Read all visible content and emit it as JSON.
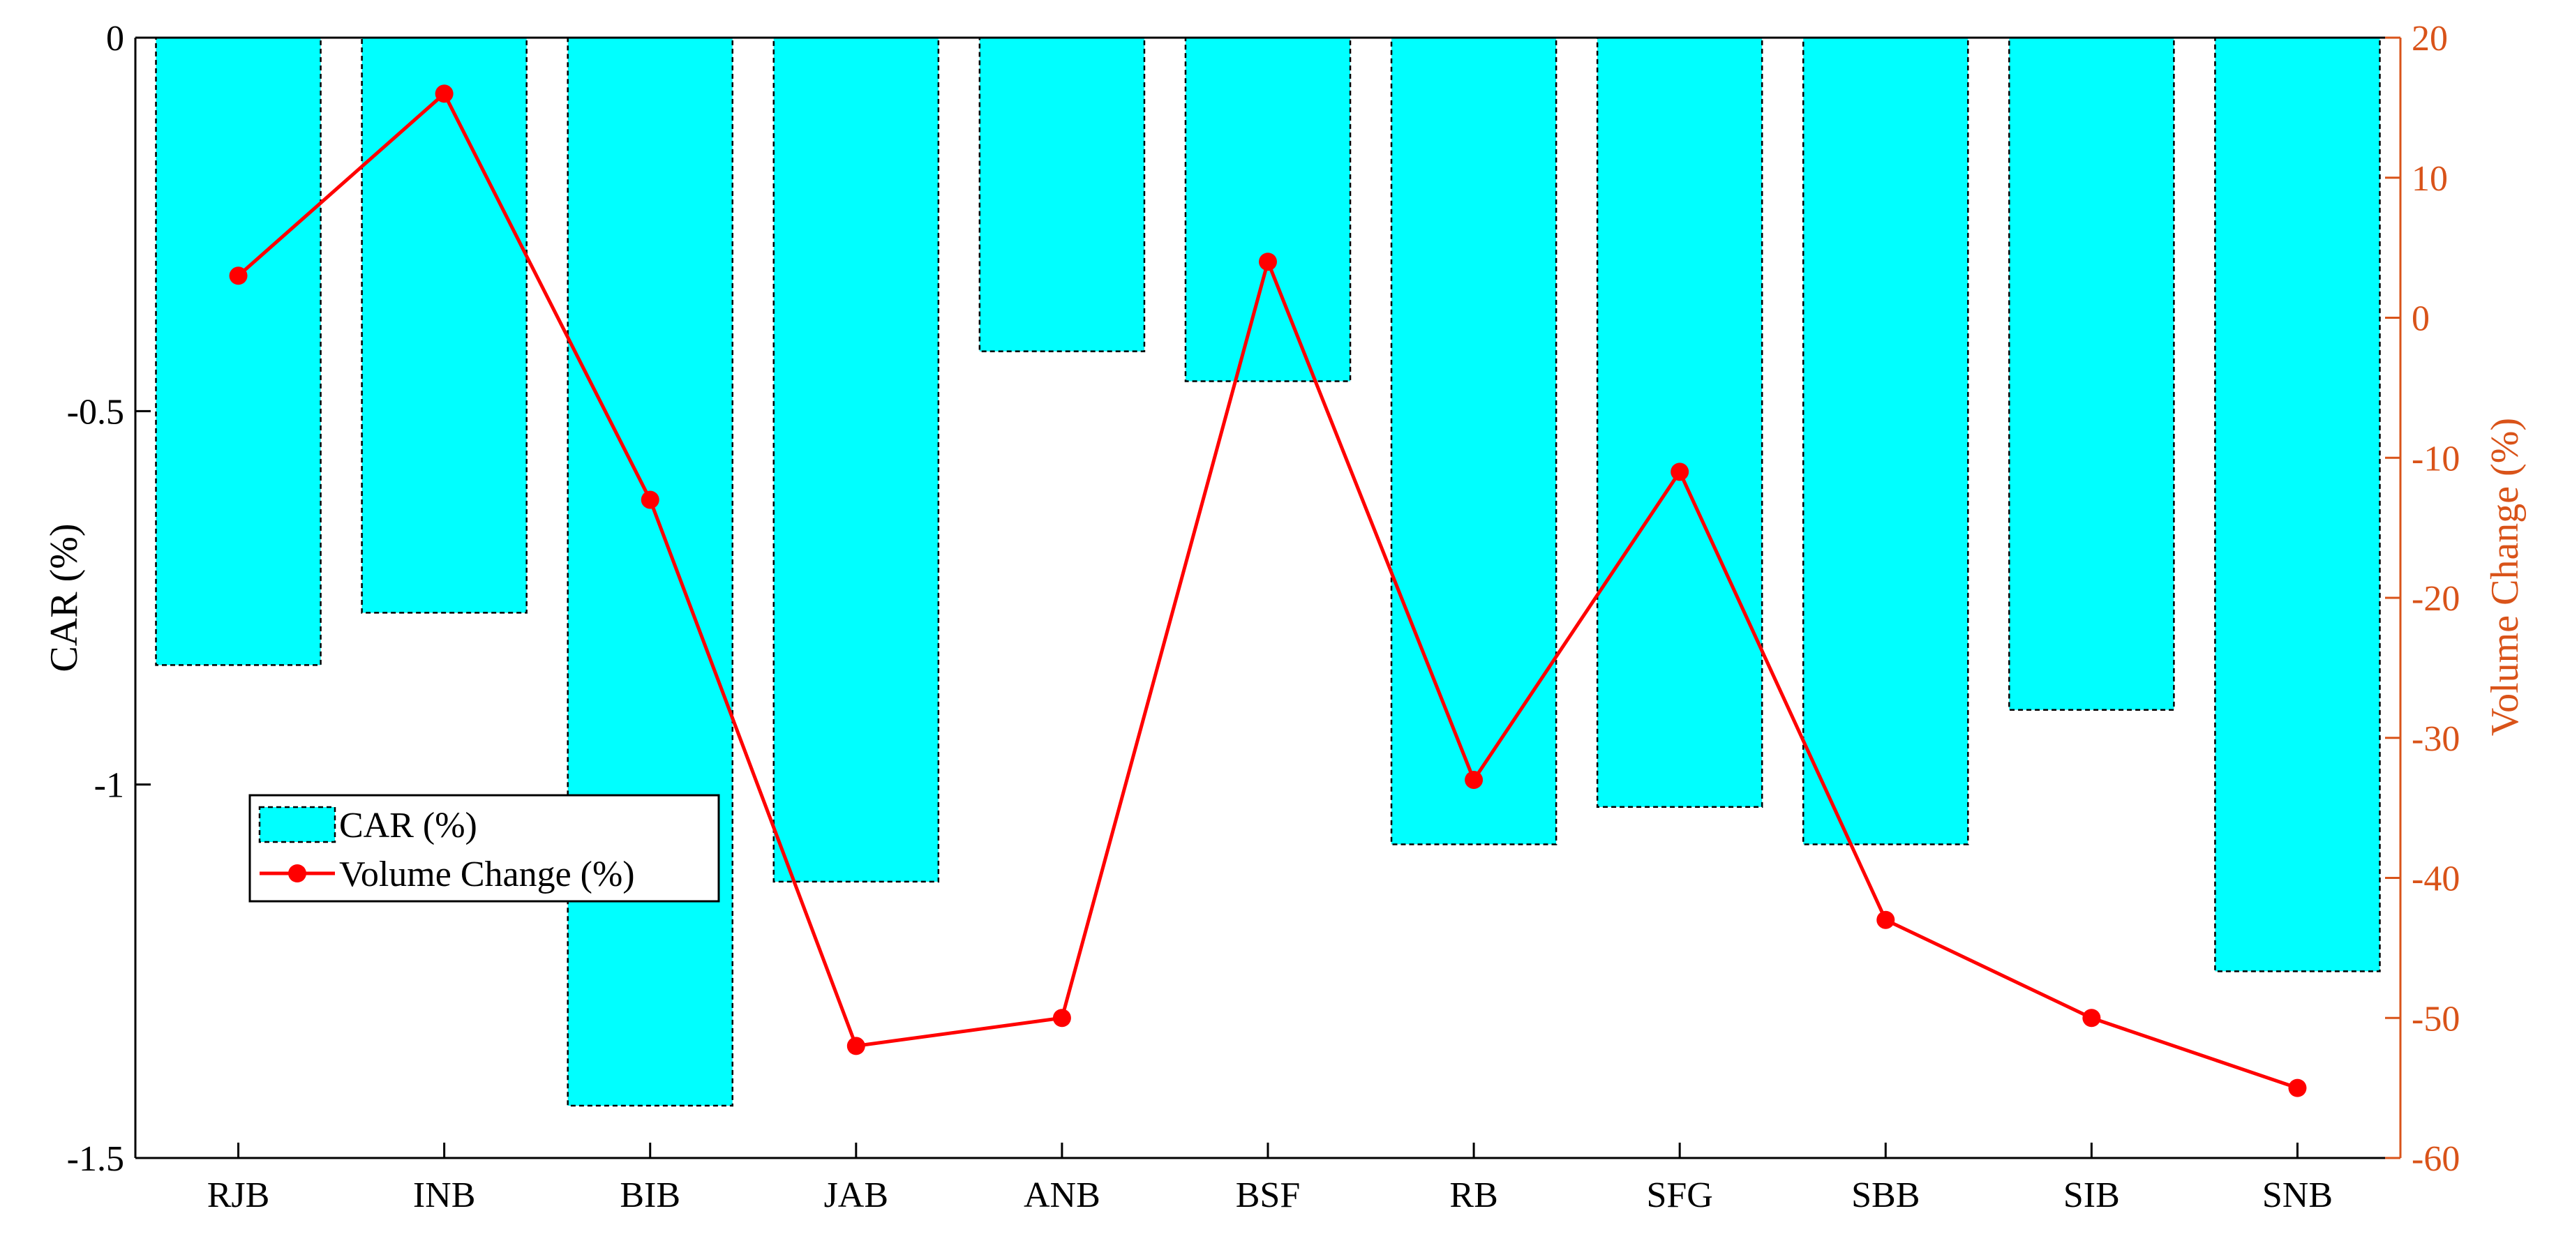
{
  "chart_data": {
    "type": "bar",
    "categories": [
      "RJB",
      "INB",
      "BIB",
      "JAB",
      "ANB",
      "BSF",
      "RB",
      "SFG",
      "SBB",
      "SIB",
      "SNB"
    ],
    "series": [
      {
        "name": "CAR (%)",
        "type": "bar",
        "axis": "left",
        "values": [
          -0.84,
          -0.77,
          -1.43,
          -1.13,
          -0.42,
          -0.46,
          -1.08,
          -1.03,
          -1.08,
          -0.9,
          -1.25
        ]
      },
      {
        "name": "Volume Change (%)",
        "type": "line",
        "axis": "right",
        "values": [
          3,
          16,
          -13,
          -52,
          -50,
          4,
          -33,
          -11,
          -43,
          -50,
          -55
        ]
      }
    ],
    "left_axis": {
      "label": "CAR (%)",
      "ylim": [
        -1.5,
        0
      ],
      "ticks": [
        0,
        -0.5,
        -1,
        -1.5
      ],
      "tick_labels": [
        "0",
        "-0.5",
        "-1",
        "-1.5"
      ]
    },
    "right_axis": {
      "label": "Volume Change (%)",
      "ylim": [
        -60,
        20
      ],
      "ticks": [
        20,
        10,
        0,
        -10,
        -20,
        -30,
        -40,
        -50,
        -60
      ],
      "tick_labels": [
        "20",
        "10",
        "0",
        "-10",
        "-20",
        "-30",
        "-40",
        "-50",
        "-60"
      ]
    },
    "legend": {
      "position": "lower-left",
      "entries": [
        "CAR (%)",
        "Volume Change (%)"
      ]
    },
    "grid": false,
    "colors": {
      "bar_fill": "#00FFFF",
      "bar_edge": "#000000",
      "line": "#FF0000",
      "right_axis": "#D95319",
      "left_axis": "#000000"
    }
  }
}
